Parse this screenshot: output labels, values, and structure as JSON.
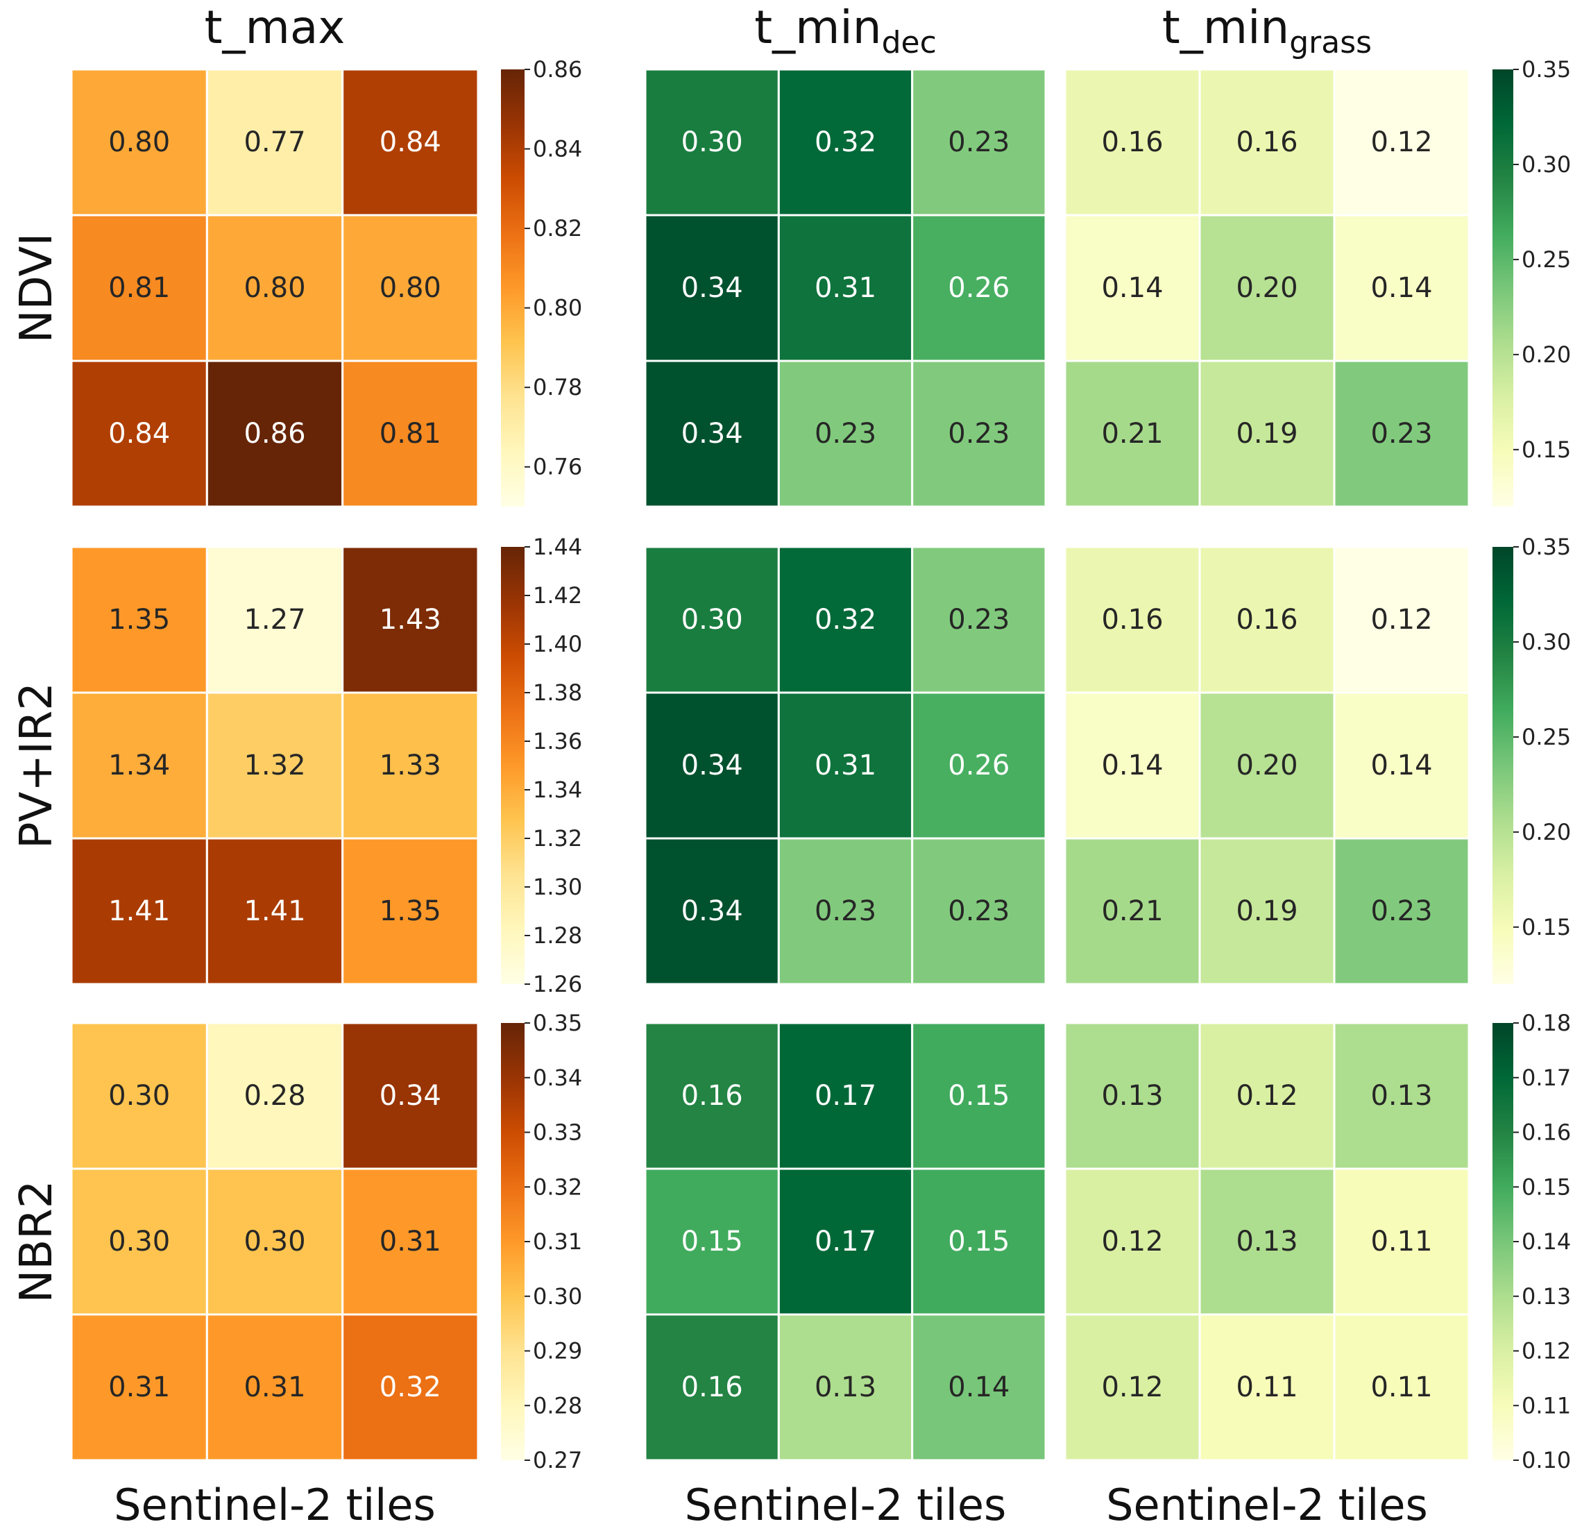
{
  "chart_data": {
    "type": "heatmap",
    "columns": [
      {
        "key": "tmax",
        "title": "t_max",
        "subscript": "",
        "xlabel": "Sentinel-2 tiles",
        "colormap": "orange"
      },
      {
        "key": "tmindec",
        "title": "t_min",
        "subscript": "dec",
        "xlabel": "Sentinel-2 tiles",
        "colormap": "green"
      },
      {
        "key": "tmingrass",
        "title": "t_min",
        "subscript": "grass",
        "xlabel": "Sentinel-2 tiles",
        "colormap": "green"
      }
    ],
    "rows": [
      {
        "label": "NDVI",
        "tmax": [
          [
            "0.80",
            "0.77",
            "0.84"
          ],
          [
            "0.81",
            "0.80",
            "0.80"
          ],
          [
            "0.84",
            "0.86",
            "0.81"
          ]
        ],
        "tmindec": [
          [
            "0.30",
            "0.32",
            "0.23"
          ],
          [
            "0.34",
            "0.31",
            "0.26"
          ],
          [
            "0.34",
            "0.23",
            "0.23"
          ]
        ],
        "tmingrass": [
          [
            "0.16",
            "0.16",
            "0.12"
          ],
          [
            "0.14",
            "0.20",
            "0.14"
          ],
          [
            "0.21",
            "0.19",
            "0.23"
          ]
        ],
        "tmax_colorbar": {
          "range": [
            0.75,
            0.86
          ],
          "ticks": [
            "0.86",
            "0.84",
            "0.82",
            "0.80",
            "0.78",
            "0.76"
          ]
        },
        "green_colorbar": {
          "range": [
            0.12,
            0.35
          ],
          "ticks": [
            "0.35",
            "0.30",
            "0.25",
            "0.20",
            "0.15"
          ]
        }
      },
      {
        "label": "PV+IR2",
        "tmax": [
          [
            "1.35",
            "1.27",
            "1.43"
          ],
          [
            "1.34",
            "1.32",
            "1.33"
          ],
          [
            "1.41",
            "1.41",
            "1.35"
          ]
        ],
        "tmindec": [
          [
            "0.30",
            "0.32",
            "0.23"
          ],
          [
            "0.34",
            "0.31",
            "0.26"
          ],
          [
            "0.34",
            "0.23",
            "0.23"
          ]
        ],
        "tmingrass": [
          [
            "0.16",
            "0.16",
            "0.12"
          ],
          [
            "0.14",
            "0.20",
            "0.14"
          ],
          [
            "0.21",
            "0.19",
            "0.23"
          ]
        ],
        "tmax_colorbar": {
          "range": [
            1.26,
            1.44
          ],
          "ticks": [
            "1.44",
            "1.42",
            "1.40",
            "1.38",
            "1.36",
            "1.34",
            "1.32",
            "1.30",
            "1.28",
            "1.26"
          ]
        },
        "green_colorbar": {
          "range": [
            0.12,
            0.35
          ],
          "ticks": [
            "0.35",
            "0.30",
            "0.25",
            "0.20",
            "0.15"
          ]
        }
      },
      {
        "label": "NBR2",
        "tmax": [
          [
            "0.30",
            "0.28",
            "0.34"
          ],
          [
            "0.30",
            "0.30",
            "0.31"
          ],
          [
            "0.31",
            "0.31",
            "0.32"
          ]
        ],
        "tmindec": [
          [
            "0.16",
            "0.17",
            "0.15"
          ],
          [
            "0.15",
            "0.17",
            "0.15"
          ],
          [
            "0.16",
            "0.13",
            "0.14"
          ]
        ],
        "tmingrass": [
          [
            "0.13",
            "0.12",
            "0.13"
          ],
          [
            "0.12",
            "0.13",
            "0.11"
          ],
          [
            "0.12",
            "0.11",
            "0.11"
          ]
        ],
        "tmax_colorbar": {
          "range": [
            0.27,
            0.35
          ],
          "ticks": [
            "0.35",
            "0.34",
            "0.33",
            "0.32",
            "0.31",
            "0.30",
            "0.29",
            "0.28",
            "0.27"
          ]
        },
        "green_colorbar": {
          "range": [
            0.1,
            0.18
          ],
          "ticks": [
            "0.18",
            "0.17",
            "0.16",
            "0.15",
            "0.14",
            "0.13",
            "0.12",
            "0.11",
            "0.10"
          ]
        }
      }
    ],
    "colors": {
      "orange": [
        "#ffffe5",
        "#fff7bc",
        "#fee391",
        "#fec44f",
        "#fe9929",
        "#ec7014",
        "#cc4c02",
        "#993404",
        "#662506"
      ],
      "green": [
        "#ffffe5",
        "#f7fcb9",
        "#d9f0a3",
        "#addd8e",
        "#78c679",
        "#41ab5d",
        "#238443",
        "#006837",
        "#004529"
      ]
    }
  }
}
